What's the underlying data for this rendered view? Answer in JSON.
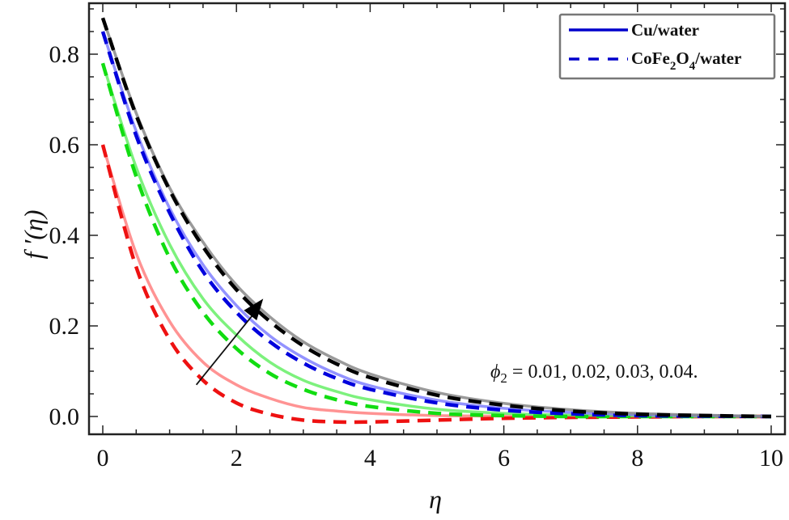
{
  "chart_data": {
    "type": "line",
    "title": "",
    "xlabel": "η",
    "ylabel": "f ′(η)",
    "xlim": [
      0,
      10
    ],
    "ylim": [
      -0.05,
      0.9
    ],
    "xticks": [
      0,
      2,
      4,
      6,
      8,
      10
    ],
    "xtick_labels": [
      "0",
      "2",
      "4",
      "6",
      "8",
      "10"
    ],
    "yticks": [
      0.0,
      0.2,
      0.4,
      0.6,
      0.8
    ],
    "ytick_labels": [
      "0.0",
      "0.2",
      "0.4",
      "0.6",
      "0.8"
    ],
    "grid": false,
    "legend_position": "top-right",
    "legend": [
      {
        "label": "Cu/water",
        "style": "solid",
        "color": "#0000cc"
      },
      {
        "label_main": "CoFe",
        "sub1": "2",
        "label_mid": "O",
        "sub2": "4",
        "label_end": "/water",
        "label": "CoFe2O4/water",
        "style": "dashed",
        "color": "#0000cc"
      }
    ],
    "annotation": {
      "text_symbol": "ϕ",
      "text_sub": "2",
      "text_rest": " = 0.01, 0.02, 0.03, 0.04.",
      "arrow": {
        "from": [
          1.4,
          0.07
        ],
        "to": [
          2.4,
          0.26
        ],
        "meaning": "increasing phi2"
      }
    },
    "x": [
      0,
      0.5,
      1,
      1.5,
      2,
      2.5,
      3,
      3.5,
      4,
      5,
      6,
      7,
      8,
      9,
      10
    ],
    "series": [
      {
        "name": "Cu/water, ϕ2=0.01",
        "style": "solid",
        "color": "#ff8080",
        "values": [
          0.6,
          0.36,
          0.21,
          0.12,
          0.07,
          0.04,
          0.02,
          0.012,
          0.007,
          0.002,
          0.001,
          0.0,
          0.0,
          0.0,
          0.0
        ]
      },
      {
        "name": "CoFe2O4/water, ϕ2=0.01",
        "style": "dashed",
        "color": "#ee1111",
        "values": [
          0.6,
          0.33,
          0.17,
          0.08,
          0.03,
          0.005,
          -0.008,
          -0.012,
          -0.012,
          -0.008,
          -0.004,
          -0.002,
          -0.001,
          0.0,
          0.0
        ]
      },
      {
        "name": "Cu/water, ϕ2=0.02",
        "style": "solid",
        "color": "#66ee66",
        "values": [
          0.78,
          0.55,
          0.38,
          0.26,
          0.18,
          0.12,
          0.08,
          0.055,
          0.037,
          0.016,
          0.007,
          0.003,
          0.001,
          0.0,
          0.0
        ]
      },
      {
        "name": "CoFe2O4/water, ϕ2=0.02",
        "style": "dashed",
        "color": "#11dd11",
        "values": [
          0.78,
          0.53,
          0.35,
          0.23,
          0.15,
          0.095,
          0.06,
          0.037,
          0.022,
          0.007,
          0.002,
          0.0,
          0.0,
          0.0,
          0.0
        ]
      },
      {
        "name": "Cu/water, ϕ2=0.03",
        "style": "solid",
        "color": "#8080ff",
        "values": [
          0.85,
          0.63,
          0.46,
          0.335,
          0.245,
          0.178,
          0.13,
          0.094,
          0.068,
          0.036,
          0.018,
          0.009,
          0.004,
          0.002,
          0.0
        ]
      },
      {
        "name": "CoFe2O4/water, ϕ2=0.03",
        "style": "dashed",
        "color": "#0000dd",
        "values": [
          0.85,
          0.62,
          0.45,
          0.32,
          0.23,
          0.165,
          0.118,
          0.084,
          0.06,
          0.03,
          0.014,
          0.006,
          0.002,
          0.001,
          0.0
        ]
      },
      {
        "name": "Cu/water, ϕ2=0.04",
        "style": "solid",
        "color": "#888888",
        "values": [
          0.88,
          0.67,
          0.505,
          0.385,
          0.29,
          0.22,
          0.165,
          0.125,
          0.094,
          0.053,
          0.029,
          0.015,
          0.007,
          0.003,
          0.0
        ]
      },
      {
        "name": "CoFe2O4/water, ϕ2=0.04",
        "style": "dashed",
        "color": "#000000",
        "values": [
          0.88,
          0.665,
          0.5,
          0.375,
          0.28,
          0.21,
          0.156,
          0.116,
          0.086,
          0.047,
          0.025,
          0.012,
          0.005,
          0.002,
          0.0
        ]
      }
    ]
  }
}
